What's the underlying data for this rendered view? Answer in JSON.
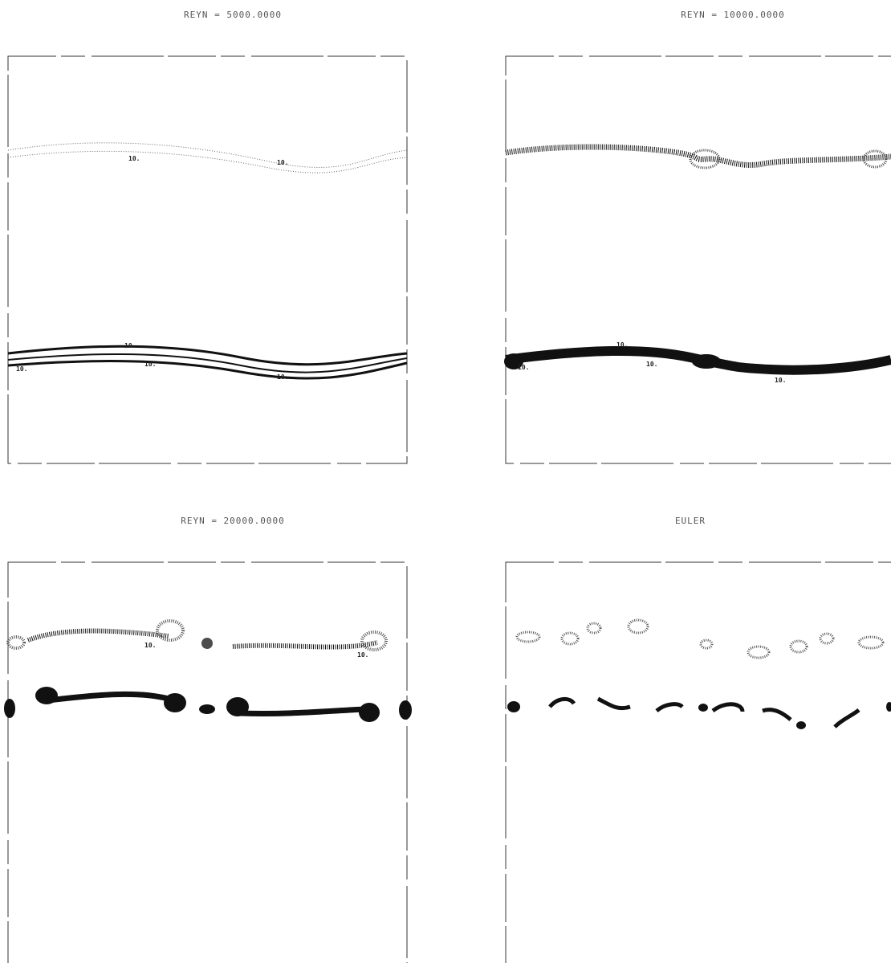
{
  "panels": [
    {
      "title": "REYN = 5000.0000",
      "contour_labels": [
        "10.",
        "10.",
        "10.",
        "10.",
        "10.",
        "10."
      ]
    },
    {
      "title": "REYN = 10000.0000",
      "contour_labels": [
        "10.",
        "10.",
        "10.",
        "10."
      ]
    },
    {
      "title": "REYN = 20000.0000",
      "contour_labels": [
        "10.",
        "10."
      ]
    },
    {
      "title": "EULER",
      "contour_labels": []
    }
  ]
}
